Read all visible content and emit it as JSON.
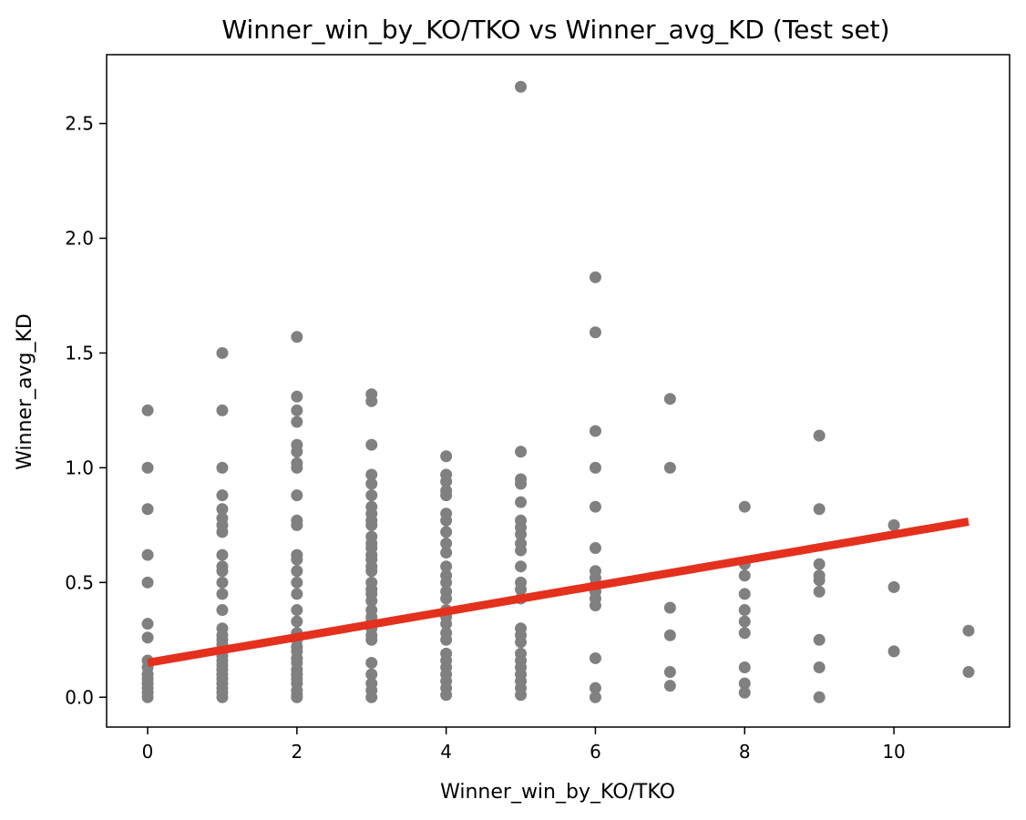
{
  "chart_data": {
    "type": "scatter",
    "title": "Winner_win_by_KO/TKO vs Winner_avg_KD (Test set)",
    "xlabel": "Winner_win_by_KO/TKO",
    "ylabel": "Winner_avg_KD",
    "xlim": [
      -0.55,
      11.55
    ],
    "ylim": [
      -0.13,
      2.8
    ],
    "xticks": [
      0,
      2,
      4,
      6,
      8,
      10
    ],
    "xtick_labels": [
      "0",
      "2",
      "4",
      "6",
      "8",
      "10"
    ],
    "yticks": [
      0.0,
      0.5,
      1.0,
      1.5,
      2.0,
      2.5
    ],
    "ytick_labels": [
      "0.0",
      "0.5",
      "1.0",
      "1.5",
      "2.0",
      "2.5"
    ],
    "grid": false,
    "point_color": "#808080",
    "line_color": "#e3311e",
    "points": [
      [
        0,
        1.25
      ],
      [
        0,
        1.0
      ],
      [
        0,
        0.82
      ],
      [
        0,
        0.62
      ],
      [
        0,
        0.5
      ],
      [
        0,
        0.32
      ],
      [
        0,
        0.26
      ],
      [
        0,
        0.16
      ],
      [
        0,
        0.13
      ],
      [
        0,
        0.1
      ],
      [
        0,
        0.08
      ],
      [
        0,
        0.06
      ],
      [
        0,
        0.04
      ],
      [
        0,
        0.02
      ],
      [
        0,
        0.0
      ],
      [
        1,
        1.5
      ],
      [
        1,
        1.25
      ],
      [
        1,
        1.0
      ],
      [
        1,
        0.88
      ],
      [
        1,
        0.82
      ],
      [
        1,
        0.78
      ],
      [
        1,
        0.75
      ],
      [
        1,
        0.72
      ],
      [
        1,
        0.62
      ],
      [
        1,
        0.57
      ],
      [
        1,
        0.55
      ],
      [
        1,
        0.5
      ],
      [
        1,
        0.45
      ],
      [
        1,
        0.38
      ],
      [
        1,
        0.3
      ],
      [
        1,
        0.27
      ],
      [
        1,
        0.25
      ],
      [
        1,
        0.23
      ],
      [
        1,
        0.2
      ],
      [
        1,
        0.18
      ],
      [
        1,
        0.16
      ],
      [
        1,
        0.14
      ],
      [
        1,
        0.12
      ],
      [
        1,
        0.1
      ],
      [
        1,
        0.08
      ],
      [
        1,
        0.06
      ],
      [
        1,
        0.04
      ],
      [
        1,
        0.02
      ],
      [
        1,
        0.0
      ],
      [
        2,
        1.57
      ],
      [
        2,
        1.31
      ],
      [
        2,
        1.25
      ],
      [
        2,
        1.2
      ],
      [
        2,
        1.1
      ],
      [
        2,
        1.07
      ],
      [
        2,
        1.02
      ],
      [
        2,
        1.0
      ],
      [
        2,
        0.88
      ],
      [
        2,
        0.77
      ],
      [
        2,
        0.75
      ],
      [
        2,
        0.62
      ],
      [
        2,
        0.6
      ],
      [
        2,
        0.55
      ],
      [
        2,
        0.5
      ],
      [
        2,
        0.45
      ],
      [
        2,
        0.38
      ],
      [
        2,
        0.33
      ],
      [
        2,
        0.28
      ],
      [
        2,
        0.25
      ],
      [
        2,
        0.22
      ],
      [
        2,
        0.2
      ],
      [
        2,
        0.17
      ],
      [
        2,
        0.15
      ],
      [
        2,
        0.12
      ],
      [
        2,
        0.1
      ],
      [
        2,
        0.08
      ],
      [
        2,
        0.06
      ],
      [
        2,
        0.03
      ],
      [
        2,
        0.01
      ],
      [
        2,
        0.0
      ],
      [
        3,
        1.32
      ],
      [
        3,
        1.29
      ],
      [
        3,
        1.1
      ],
      [
        3,
        0.97
      ],
      [
        3,
        0.93
      ],
      [
        3,
        0.88
      ],
      [
        3,
        0.83
      ],
      [
        3,
        0.8
      ],
      [
        3,
        0.77
      ],
      [
        3,
        0.75
      ],
      [
        3,
        0.7
      ],
      [
        3,
        0.67
      ],
      [
        3,
        0.65
      ],
      [
        3,
        0.62
      ],
      [
        3,
        0.6
      ],
      [
        3,
        0.57
      ],
      [
        3,
        0.55
      ],
      [
        3,
        0.5
      ],
      [
        3,
        0.47
      ],
      [
        3,
        0.45
      ],
      [
        3,
        0.42
      ],
      [
        3,
        0.38
      ],
      [
        3,
        0.35
      ],
      [
        3,
        0.33
      ],
      [
        3,
        0.3
      ],
      [
        3,
        0.27
      ],
      [
        3,
        0.25
      ],
      [
        3,
        0.15
      ],
      [
        3,
        0.1
      ],
      [
        3,
        0.06
      ],
      [
        3,
        0.03
      ],
      [
        3,
        0.0
      ],
      [
        4,
        1.05
      ],
      [
        4,
        0.97
      ],
      [
        4,
        0.94
      ],
      [
        4,
        0.9
      ],
      [
        4,
        0.88
      ],
      [
        4,
        0.8
      ],
      [
        4,
        0.77
      ],
      [
        4,
        0.72
      ],
      [
        4,
        0.67
      ],
      [
        4,
        0.63
      ],
      [
        4,
        0.57
      ],
      [
        4,
        0.53
      ],
      [
        4,
        0.5
      ],
      [
        4,
        0.46
      ],
      [
        4,
        0.43
      ],
      [
        4,
        0.38
      ],
      [
        4,
        0.35
      ],
      [
        4,
        0.32
      ],
      [
        4,
        0.28
      ],
      [
        4,
        0.25
      ],
      [
        4,
        0.19
      ],
      [
        4,
        0.16
      ],
      [
        4,
        0.13
      ],
      [
        4,
        0.1
      ],
      [
        4,
        0.07
      ],
      [
        4,
        0.04
      ],
      [
        4,
        0.01
      ],
      [
        5,
        2.66
      ],
      [
        5,
        1.07
      ],
      [
        5,
        0.95
      ],
      [
        5,
        0.93
      ],
      [
        5,
        0.85
      ],
      [
        5,
        0.77
      ],
      [
        5,
        0.74
      ],
      [
        5,
        0.71
      ],
      [
        5,
        0.67
      ],
      [
        5,
        0.64
      ],
      [
        5,
        0.57
      ],
      [
        5,
        0.5
      ],
      [
        5,
        0.47
      ],
      [
        5,
        0.43
      ],
      [
        5,
        0.3
      ],
      [
        5,
        0.27
      ],
      [
        5,
        0.24
      ],
      [
        5,
        0.19
      ],
      [
        5,
        0.16
      ],
      [
        5,
        0.13
      ],
      [
        5,
        0.1
      ],
      [
        5,
        0.07
      ],
      [
        5,
        0.04
      ],
      [
        5,
        0.01
      ],
      [
        6,
        1.83
      ],
      [
        6,
        1.59
      ],
      [
        6,
        1.16
      ],
      [
        6,
        1.0
      ],
      [
        6,
        0.83
      ],
      [
        6,
        0.65
      ],
      [
        6,
        0.55
      ],
      [
        6,
        0.52
      ],
      [
        6,
        0.49
      ],
      [
        6,
        0.46
      ],
      [
        6,
        0.43
      ],
      [
        6,
        0.4
      ],
      [
        6,
        0.17
      ],
      [
        6,
        0.04
      ],
      [
        6,
        0.0
      ],
      [
        7,
        1.3
      ],
      [
        7,
        1.0
      ],
      [
        7,
        0.39
      ],
      [
        7,
        0.27
      ],
      [
        7,
        0.11
      ],
      [
        7,
        0.05
      ],
      [
        8,
        0.83
      ],
      [
        8,
        0.58
      ],
      [
        8,
        0.53
      ],
      [
        8,
        0.45
      ],
      [
        8,
        0.38
      ],
      [
        8,
        0.33
      ],
      [
        8,
        0.28
      ],
      [
        8,
        0.13
      ],
      [
        8,
        0.06
      ],
      [
        8,
        0.02
      ],
      [
        9,
        1.14
      ],
      [
        9,
        0.82
      ],
      [
        9,
        0.58
      ],
      [
        9,
        0.53
      ],
      [
        9,
        0.51
      ],
      [
        9,
        0.46
      ],
      [
        9,
        0.25
      ],
      [
        9,
        0.13
      ],
      [
        9,
        0.0
      ],
      [
        10,
        0.75
      ],
      [
        10,
        0.48
      ],
      [
        10,
        0.2
      ],
      [
        11,
        0.29
      ],
      [
        11,
        0.11
      ]
    ],
    "regression_line": {
      "x": [
        0,
        11
      ],
      "y": [
        0.15,
        0.765
      ]
    }
  }
}
